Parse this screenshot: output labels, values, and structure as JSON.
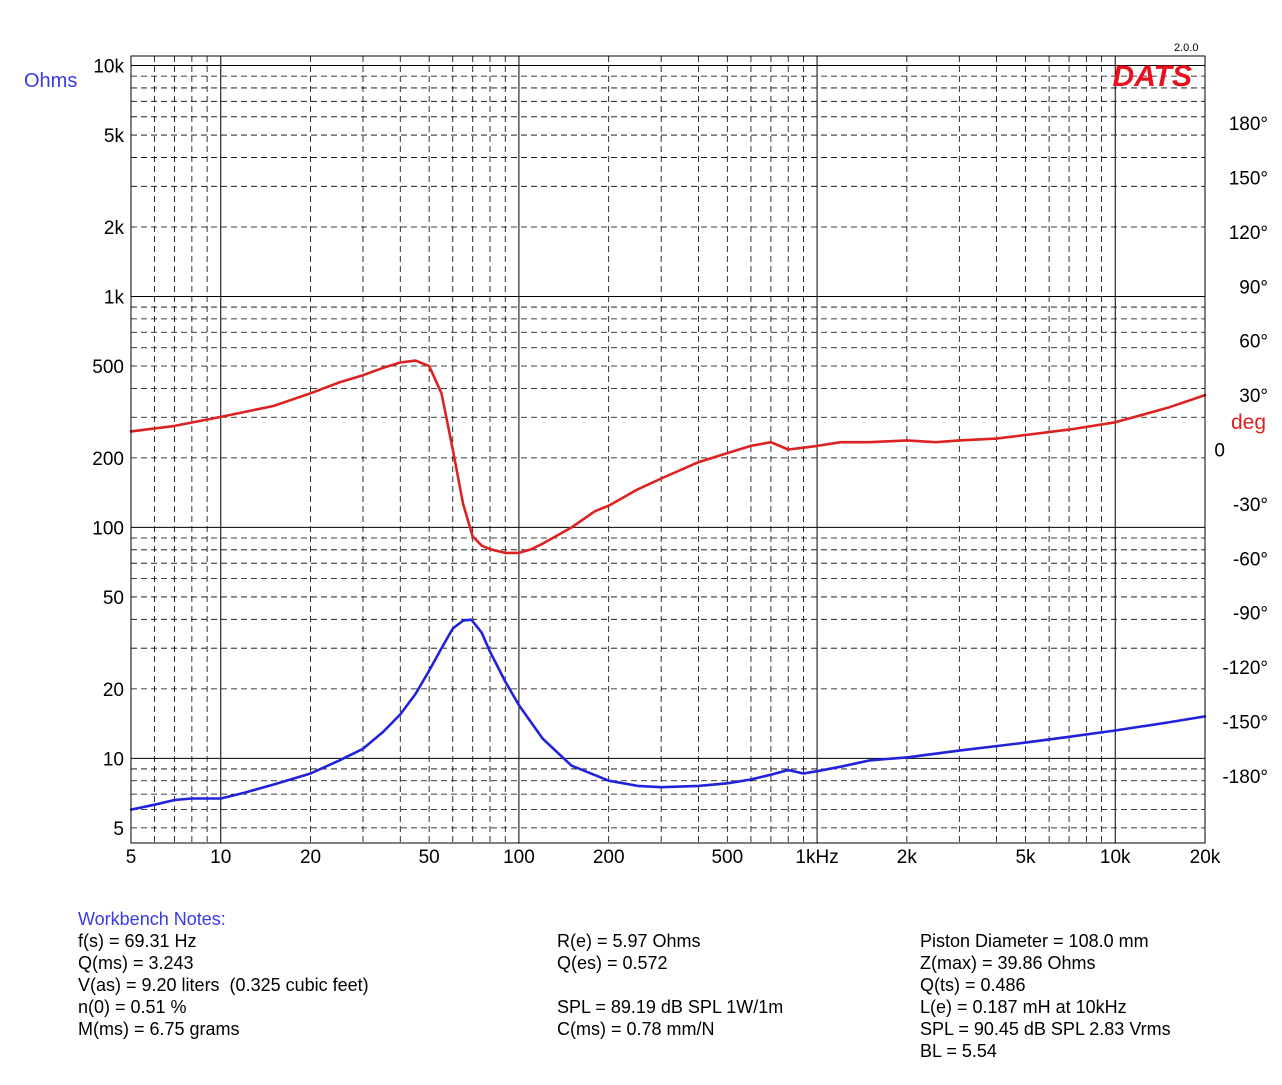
{
  "chart_data": {
    "type": "line",
    "version": "2.0.0",
    "brand": "DATS",
    "y_left_title": "Ohms",
    "y_right_unit": "deg",
    "x_scale": "log",
    "y_left_scale": "log",
    "x_range": [
      5,
      20000
    ],
    "y_left_range": [
      4.3,
      11000
    ],
    "y_right_range": [
      -217,
      217
    ],
    "x_ticks": [
      {
        "value": 5,
        "label": "5"
      },
      {
        "value": 10,
        "label": "10"
      },
      {
        "value": 20,
        "label": "20"
      },
      {
        "value": 50,
        "label": "50"
      },
      {
        "value": 100,
        "label": "100"
      },
      {
        "value": 200,
        "label": "200"
      },
      {
        "value": 500,
        "label": "500"
      },
      {
        "value": 1000,
        "label": "1kHz"
      },
      {
        "value": 2000,
        "label": "2k"
      },
      {
        "value": 5000,
        "label": "5k"
      },
      {
        "value": 10000,
        "label": "10k"
      },
      {
        "value": 20000,
        "label": "20k"
      }
    ],
    "y_left_ticks": [
      {
        "value": 5,
        "label": "5"
      },
      {
        "value": 10,
        "label": "10"
      },
      {
        "value": 20,
        "label": "20"
      },
      {
        "value": 50,
        "label": "50"
      },
      {
        "value": 100,
        "label": "100"
      },
      {
        "value": 200,
        "label": "200"
      },
      {
        "value": 500,
        "label": "500"
      },
      {
        "value": 1000,
        "label": "1k"
      },
      {
        "value": 2000,
        "label": "2k"
      },
      {
        "value": 5000,
        "label": "5k"
      },
      {
        "value": 10000,
        "label": "10k"
      }
    ],
    "y_right_ticks": [
      {
        "value": 180,
        "label": "180°"
      },
      {
        "value": 150,
        "label": "150°"
      },
      {
        "value": 120,
        "label": "120°"
      },
      {
        "value": 90,
        "label": "90°"
      },
      {
        "value": 60,
        "label": "60°"
      },
      {
        "value": 30,
        "label": "30°"
      },
      {
        "value": 0,
        "label": "0"
      },
      {
        "value": -30,
        "label": "-30°"
      },
      {
        "value": -60,
        "label": "-60°"
      },
      {
        "value": -90,
        "label": "-90°"
      },
      {
        "value": -120,
        "label": "-120°"
      },
      {
        "value": -150,
        "label": "-150°"
      },
      {
        "value": -180,
        "label": "-180°"
      }
    ],
    "grid": true,
    "series": [
      {
        "name": "Ohms",
        "axis": "left",
        "color": "#2222dd",
        "x": [
          5,
          6,
          7,
          8,
          9,
          10,
          12,
          15,
          20,
          25,
          30,
          35,
          40,
          45,
          50,
          55,
          60,
          65,
          69.31,
          75,
          80,
          90,
          100,
          120,
          150,
          200,
          250,
          300,
          400,
          500,
          600,
          700,
          800,
          900,
          1000,
          1200,
          1500,
          2000,
          3000,
          5000,
          7000,
          10000,
          15000,
          20000
        ],
        "y": [
          6.0,
          6.3,
          6.6,
          6.7,
          6.7,
          6.7,
          7.1,
          7.7,
          8.6,
          9.8,
          11.0,
          13.0,
          15.5,
          19.0,
          24.0,
          30.0,
          36.5,
          39.5,
          39.86,
          35.0,
          29.0,
          21.5,
          17.0,
          12.2,
          9.3,
          8.0,
          7.6,
          7.5,
          7.6,
          7.8,
          8.1,
          8.5,
          8.9,
          8.6,
          8.8,
          9.2,
          9.8,
          10.1,
          10.8,
          11.7,
          12.4,
          13.2,
          14.3,
          15.2
        ]
      },
      {
        "name": "deg",
        "axis": "right",
        "color": "#dd2222",
        "x": [
          5,
          7,
          10,
          15,
          20,
          25,
          30,
          35,
          40,
          45,
          50,
          55,
          60,
          65,
          70,
          75,
          80,
          90,
          100,
          110,
          120,
          150,
          180,
          200,
          250,
          300,
          400,
          500,
          600,
          700,
          800,
          900,
          1000,
          1200,
          1500,
          2000,
          2500,
          3000,
          4000,
          5000,
          7000,
          10000,
          15000,
          20000
        ],
        "y": [
          10,
          13,
          18,
          24,
          31,
          37,
          41,
          45,
          48,
          49,
          46,
          31,
          0,
          -30,
          -48,
          -53,
          -55,
          -57,
          -57,
          -55,
          -52,
          -43,
          -34,
          -31,
          -22,
          -16,
          -7,
          -2,
          2,
          4,
          0,
          1,
          2,
          4,
          4,
          5,
          4,
          5,
          6,
          8,
          11,
          15,
          23,
          30
        ]
      }
    ]
  },
  "notes": {
    "title": "Workbench Notes:",
    "col1": [
      "f(s) = 69.31 Hz",
      "Q(ms) = 3.243",
      "V(as) = 9.20 liters  (0.325 cubic feet)",
      "n(0) = 0.51 %",
      "M(ms) = 6.75 grams"
    ],
    "col2": [
      "R(e) = 5.97 Ohms",
      "Q(es) = 0.572",
      "SPL = 89.19 dB SPL 1W/1m",
      "C(ms) = 0.78 mm/N"
    ],
    "col3": [
      "Piston Diameter = 108.0 mm",
      "Z(max) = 39.86 Ohms",
      "Q(ts) = 0.486",
      "L(e) = 0.187 mH at 10kHz",
      "SPL = 90.45 dB SPL 2.83 Vrms",
      "BL = 5.54"
    ]
  },
  "colors": {
    "impedance": "#2222dd",
    "phase": "#dd2222",
    "brand": "#e8101c",
    "notes_title": "#3a3ae6",
    "grid": "#000000"
  }
}
